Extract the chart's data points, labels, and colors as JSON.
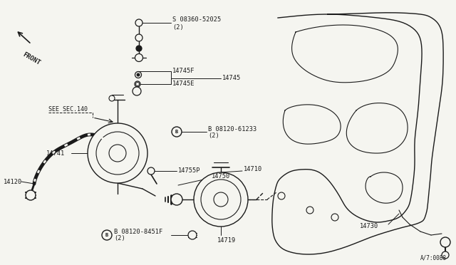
{
  "bg_color": "#f5f5f0",
  "dc": "#1a1a1a",
  "fig_w": 6.4,
  "fig_h": 3.72,
  "dpi": 100,
  "watermark": "A/7:0088",
  "front_label": "FRONT",
  "parts_labels": {
    "s08360": "S 08360-52025",
    "s08360_2": "(2)",
    "f14745F": "14745F",
    "f14745E": "14745E",
    "f14745": "14745",
    "b61233": "B 08120-61233",
    "b61233_2": "(2)",
    "f14741": "14741",
    "f14755P": "14755P",
    "f14750": "14750",
    "f14710": "14710",
    "f14120": "14120",
    "f14719": "14719",
    "f14730": "14730",
    "b8451F": "B 08120-8451F",
    "b8451F_2": "(2)"
  },
  "see_sec": "SEE SEC.140"
}
